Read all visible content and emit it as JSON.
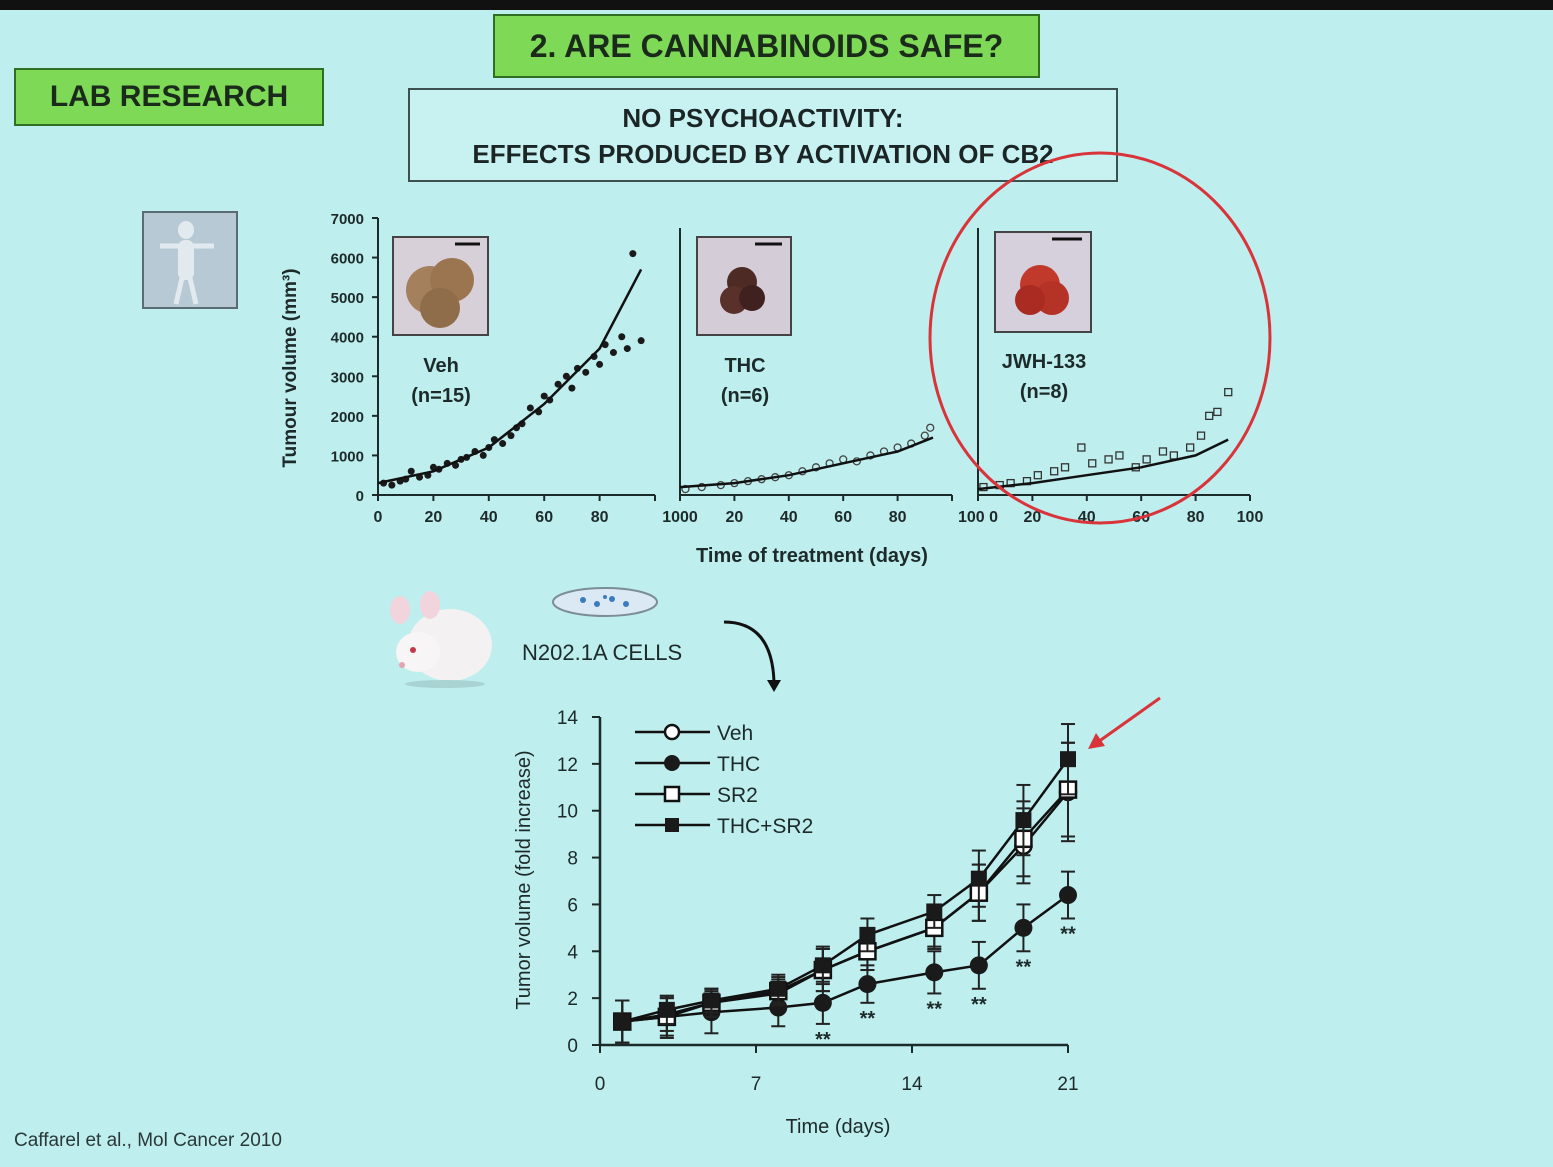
{
  "header": {
    "title": "2. ARE CANNABINOIDS SAFE?",
    "section_label": "LAB RESEARCH",
    "subtitle_line1": "NO PSYCHOACTIVITY:",
    "subtitle_line2": "EFFECTS PRODUCED BY ACTIVATION OF CB2"
  },
  "colors": {
    "background": "#bfeeee",
    "label_green": "#7ed957",
    "highlight_red": "#d8343a",
    "ink": "#1a2a2a"
  },
  "cells_label": "N202.1A CELLS",
  "citation": "Caffarel et al., Mol Cancer 2010",
  "chart_data": [
    {
      "type": "scatter",
      "title": "",
      "ylabel": "Tumour volume (mm³)",
      "xlabel": "Time of treatment (days)",
      "ylim": [
        0,
        7000
      ],
      "yticks": [
        "0",
        "1000",
        "2000",
        "3000",
        "4000",
        "5000",
        "6000",
        "7000"
      ],
      "xticks_display": [
        "0",
        "20",
        "40",
        "60",
        "80",
        "1000",
        "20",
        "40",
        "60",
        "80",
        "100 0",
        "20",
        "40",
        "60",
        "80",
        "100"
      ],
      "highlighted_panel": "JWH-133",
      "panels": [
        {
          "name": "Veh",
          "n_label": "(n=15)",
          "marker": "filled-circle",
          "xlim": [
            0,
            100
          ],
          "points": [
            [
              2,
              300
            ],
            [
              5,
              250
            ],
            [
              8,
              350
            ],
            [
              10,
              400
            ],
            [
              12,
              600
            ],
            [
              15,
              450
            ],
            [
              18,
              500
            ],
            [
              20,
              700
            ],
            [
              22,
              650
            ],
            [
              25,
              800
            ],
            [
              28,
              750
            ],
            [
              30,
              900
            ],
            [
              32,
              950
            ],
            [
              35,
              1100
            ],
            [
              38,
              1000
            ],
            [
              40,
              1200
            ],
            [
              42,
              1400
            ],
            [
              45,
              1300
            ],
            [
              48,
              1500
            ],
            [
              50,
              1700
            ],
            [
              52,
              1800
            ],
            [
              55,
              2200
            ],
            [
              58,
              2100
            ],
            [
              60,
              2500
            ],
            [
              62,
              2400
            ],
            [
              65,
              2800
            ],
            [
              68,
              3000
            ],
            [
              70,
              2700
            ],
            [
              72,
              3200
            ],
            [
              75,
              3100
            ],
            [
              78,
              3500
            ],
            [
              80,
              3300
            ],
            [
              82,
              3800
            ],
            [
              85,
              3600
            ],
            [
              88,
              4000
            ],
            [
              90,
              3700
            ],
            [
              92,
              6100
            ],
            [
              95,
              3900
            ]
          ],
          "trend": [
            [
              0,
              300
            ],
            [
              20,
              600
            ],
            [
              40,
              1200
            ],
            [
              60,
              2300
            ],
            [
              80,
              3700
            ],
            [
              95,
              5700
            ]
          ]
        },
        {
          "name": "THC",
          "n_label": "(n=6)",
          "marker": "open-circle",
          "xlim": [
            0,
            100
          ],
          "points": [
            [
              2,
              150
            ],
            [
              8,
              200
            ],
            [
              15,
              250
            ],
            [
              20,
              300
            ],
            [
              25,
              350
            ],
            [
              30,
              400
            ],
            [
              35,
              450
            ],
            [
              40,
              500
            ],
            [
              45,
              600
            ],
            [
              50,
              700
            ],
            [
              55,
              800
            ],
            [
              60,
              900
            ],
            [
              65,
              850
            ],
            [
              70,
              1000
            ],
            [
              75,
              1100
            ],
            [
              80,
              1200
            ],
            [
              85,
              1300
            ],
            [
              90,
              1500
            ],
            [
              92,
              1700
            ]
          ],
          "trend": [
            [
              0,
              200
            ],
            [
              20,
              300
            ],
            [
              40,
              500
            ],
            [
              60,
              800
            ],
            [
              80,
              1100
            ],
            [
              93,
              1450
            ]
          ]
        },
        {
          "name": "JWH-133",
          "n_label": "(n=8)",
          "marker": "open-square",
          "xlim": [
            0,
            100
          ],
          "points": [
            [
              2,
              200
            ],
            [
              8,
              250
            ],
            [
              12,
              300
            ],
            [
              18,
              350
            ],
            [
              22,
              500
            ],
            [
              28,
              600
            ],
            [
              32,
              700
            ],
            [
              38,
              1200
            ],
            [
              42,
              800
            ],
            [
              48,
              900
            ],
            [
              52,
              1000
            ],
            [
              58,
              700
            ],
            [
              62,
              900
            ],
            [
              68,
              1100
            ],
            [
              72,
              1000
            ],
            [
              78,
              1200
            ],
            [
              82,
              1500
            ],
            [
              85,
              2000
            ],
            [
              88,
              2100
            ],
            [
              92,
              2600
            ]
          ],
          "trend": [
            [
              0,
              150
            ],
            [
              20,
              300
            ],
            [
              40,
              500
            ],
            [
              60,
              700
            ],
            [
              80,
              1000
            ],
            [
              92,
              1400
            ]
          ]
        }
      ]
    },
    {
      "type": "line",
      "title": "",
      "xlabel": "Time (days)",
      "ylabel": "Tumor volume (fold increase)",
      "xlim": [
        0,
        21
      ],
      "ylim": [
        0,
        14
      ],
      "xticks": [
        0,
        7,
        14,
        21
      ],
      "yticks": [
        0,
        2,
        4,
        6,
        8,
        10,
        12,
        14
      ],
      "x": [
        1,
        3,
        5,
        8,
        10,
        12,
        15,
        17,
        19,
        21
      ],
      "legend_position": "top-left",
      "series": [
        {
          "name": "Veh",
          "marker": "open-circle",
          "values": [
            1,
            1.3,
            1.8,
            2.2,
            3.2,
            4.0,
            5.0,
            6.5,
            8.5,
            10.8
          ],
          "error": [
            0.9,
            0.7,
            0.6,
            0.6,
            0.9,
            0.8,
            0.8,
            1.2,
            1.6,
            2.1
          ]
        },
        {
          "name": "THC",
          "marker": "filled-circle",
          "values": [
            1,
            1.2,
            1.4,
            1.6,
            1.8,
            2.6,
            3.1,
            3.4,
            5.0,
            6.4
          ],
          "error": [
            0.9,
            0.9,
            0.9,
            0.8,
            0.9,
            0.8,
            0.9,
            1.0,
            1.0,
            1.0
          ]
        },
        {
          "name": "SR2",
          "marker": "open-square",
          "values": [
            1,
            1.2,
            1.8,
            2.3,
            3.2,
            4.0,
            5.0,
            6.5,
            8.8,
            10.9
          ],
          "error": [
            0.9,
            0.8,
            0.6,
            0.6,
            0.9,
            0.8,
            0.9,
            1.2,
            1.6,
            2.0
          ]
        },
        {
          "name": "THC+SR2",
          "marker": "filled-square",
          "values": [
            1,
            1.5,
            1.9,
            2.4,
            3.4,
            4.7,
            5.7,
            7.1,
            9.6,
            12.2
          ],
          "error": [
            0.9,
            0.6,
            0.5,
            0.6,
            0.8,
            0.7,
            0.7,
            1.2,
            1.5,
            1.5
          ]
        }
      ],
      "significance": [
        {
          "x": 10,
          "label": "**"
        },
        {
          "x": 12,
          "label": "**"
        },
        {
          "x": 15,
          "label": "**"
        },
        {
          "x": 17,
          "label": "**"
        },
        {
          "x": 19,
          "label": "**"
        },
        {
          "x": 21,
          "label": "**"
        }
      ]
    }
  ]
}
